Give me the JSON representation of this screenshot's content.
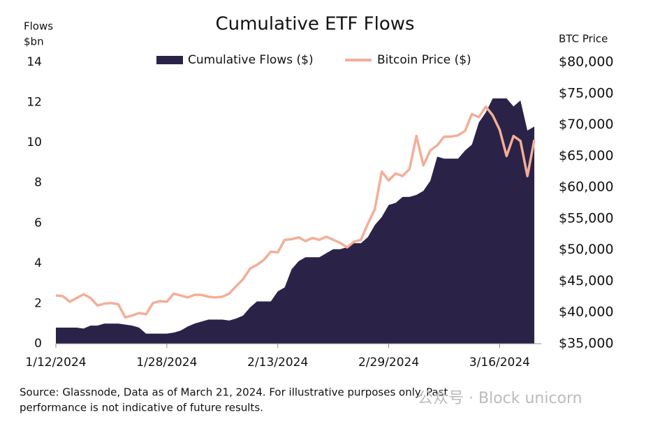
{
  "chart_data": {
    "type": "area_line",
    "title": "Cumulative ETF Flows",
    "ylabel": [
      "Flows",
      "$bn"
    ],
    "y2label": "BTC Price",
    "x": [
      "1/12/2024",
      "1/13/2024",
      "1/14/2024",
      "1/15/2024",
      "1/16/2024",
      "1/17/2024",
      "1/18/2024",
      "1/19/2024",
      "1/20/2024",
      "1/21/2024",
      "1/22/2024",
      "1/23/2024",
      "1/24/2024",
      "1/25/2024",
      "1/26/2024",
      "1/27/2024",
      "1/28/2024",
      "1/29/2024",
      "1/30/2024",
      "1/31/2024",
      "2/1/2024",
      "2/2/2024",
      "2/3/2024",
      "2/4/2024",
      "2/5/2024",
      "2/6/2024",
      "2/7/2024",
      "2/8/2024",
      "2/9/2024",
      "2/10/2024",
      "2/11/2024",
      "2/12/2024",
      "2/13/2024",
      "2/14/2024",
      "2/15/2024",
      "2/16/2024",
      "2/17/2024",
      "2/18/2024",
      "2/19/2024",
      "2/20/2024",
      "2/21/2024",
      "2/22/2024",
      "2/23/2024",
      "2/24/2024",
      "2/25/2024",
      "2/26/2024",
      "2/27/2024",
      "2/28/2024",
      "2/29/2024",
      "3/1/2024",
      "3/2/2024",
      "3/3/2024",
      "3/4/2024",
      "3/5/2024",
      "3/6/2024",
      "3/7/2024",
      "3/8/2024",
      "3/9/2024",
      "3/10/2024",
      "3/11/2024",
      "3/12/2024",
      "3/13/2024",
      "3/14/2024",
      "3/15/2024",
      "3/16/2024",
      "3/17/2024",
      "3/18/2024",
      "3/19/2024",
      "3/20/2024",
      "3/21/2024"
    ],
    "xticks": [
      "1/12/2024",
      "1/28/2024",
      "2/13/2024",
      "2/29/2024",
      "3/16/2024"
    ],
    "series": [
      {
        "name": "Cumulative Flows ($)",
        "type": "area",
        "color": "#2b2347",
        "values": [
          0.8,
          0.8,
          0.8,
          0.8,
          0.75,
          0.9,
          0.9,
          1.0,
          1.0,
          1.0,
          0.95,
          0.9,
          0.8,
          0.5,
          0.5,
          0.5,
          0.5,
          0.55,
          0.65,
          0.85,
          1.0,
          1.1,
          1.2,
          1.2,
          1.2,
          1.15,
          1.25,
          1.4,
          1.8,
          2.1,
          2.1,
          2.1,
          2.6,
          2.8,
          3.7,
          4.1,
          4.3,
          4.3,
          4.3,
          4.5,
          4.7,
          4.7,
          4.8,
          5.0,
          5.0,
          5.3,
          5.9,
          6.3,
          6.9,
          7.0,
          7.3,
          7.3,
          7.4,
          7.6,
          8.1,
          9.3,
          9.2,
          9.2,
          9.2,
          9.6,
          9.9,
          11.0,
          11.5,
          12.2,
          12.2,
          12.2,
          11.8,
          12.1,
          10.6,
          10.8
        ]
      },
      {
        "name": "Bitcoin Price ($)",
        "type": "line",
        "axis": "y2",
        "color": "#f4ae97",
        "values": [
          42700,
          42600,
          41700,
          42300,
          42900,
          42300,
          41100,
          41400,
          41500,
          41300,
          39200,
          39500,
          39900,
          39700,
          41500,
          41800,
          41700,
          43000,
          42700,
          42400,
          42800,
          42800,
          42500,
          42400,
          42500,
          43000,
          44200,
          45300,
          47000,
          47600,
          48400,
          49700,
          49600,
          51600,
          51700,
          52000,
          51400,
          51900,
          51600,
          52100,
          51600,
          51100,
          50400,
          51300,
          51600,
          54200,
          56500,
          62500,
          61100,
          62200,
          61800,
          62900,
          68200,
          63500,
          65900,
          66700,
          68100,
          68100,
          68300,
          69000,
          71700,
          71200,
          72900,
          71500,
          69200,
          65000,
          68200,
          67400,
          61800,
          67600
        ]
      }
    ],
    "ylim": [
      0,
      14
    ],
    "yticks": [
      0,
      2,
      4,
      6,
      8,
      10,
      12,
      14
    ],
    "y2lim": [
      35000,
      80000
    ],
    "y2ticks": [
      {
        "value": 35000,
        "label": "$35,000"
      },
      {
        "value": 40000,
        "label": "$40,000"
      },
      {
        "value": 45000,
        "label": "$45,000"
      },
      {
        "value": 50000,
        "label": "$50,000"
      },
      {
        "value": 55000,
        "label": "$55,000"
      },
      {
        "value": 60000,
        "label": "$60,000"
      },
      {
        "value": 65000,
        "label": "$65,000"
      },
      {
        "value": 70000,
        "label": "$70,000"
      },
      {
        "value": 75000,
        "label": "$75,000"
      },
      {
        "value": 80000,
        "label": "$80,000"
      }
    ],
    "grid": false,
    "source": [
      "Source: Glassnode, Data as of March 21, 2024. For illustrative purposes only. Past",
      "performance is not indicative of future results."
    ],
    "watermark": "公众号 · Block unicorn"
  }
}
